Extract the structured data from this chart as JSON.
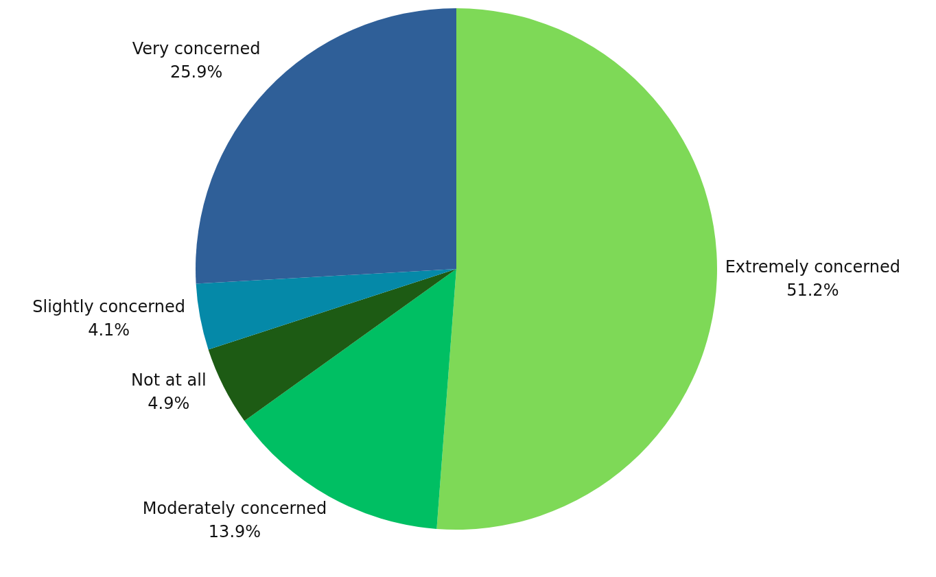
{
  "chart_data": {
    "type": "pie",
    "categories": [
      "Extremely concerned",
      "Moderately concerned",
      "Not at all",
      "Slightly concerned",
      "Very concerned"
    ],
    "values": [
      51.2,
      13.9,
      4.9,
      4.1,
      25.9
    ],
    "colors": [
      "#7ed957",
      "#00bf63",
      "#1d5b14",
      "#0589a8",
      "#2f5f98"
    ],
    "value_labels": [
      "51.2%",
      "13.9%",
      "4.9%",
      "4.1%",
      "25.9%"
    ]
  }
}
